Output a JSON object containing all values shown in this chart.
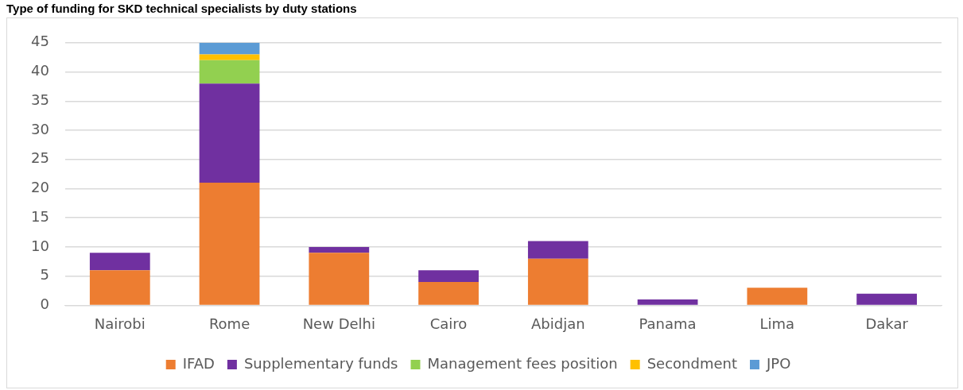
{
  "chart_data": {
    "type": "bar",
    "stacked": true,
    "title": "Type of funding for SKD technical specialists by duty stations",
    "categories": [
      "Nairobi",
      "Rome",
      "New Delhi",
      "Cairo",
      "Abidjan",
      "Panama",
      "Lima",
      "Dakar"
    ],
    "series": [
      {
        "name": "IFAD",
        "color": "#ed7d31",
        "values": [
          6,
          21,
          9,
          4,
          8,
          0,
          3,
          0
        ]
      },
      {
        "name": "Supplementary funds",
        "color": "#7030a0",
        "values": [
          3,
          17,
          1,
          2,
          3,
          1,
          0,
          2
        ]
      },
      {
        "name": "Management fees position",
        "color": "#92d050",
        "values": [
          0,
          4,
          0,
          0,
          0,
          0,
          0,
          0
        ]
      },
      {
        "name": "Secondment",
        "color": "#ffc000",
        "values": [
          0,
          1,
          0,
          0,
          0,
          0,
          0,
          0
        ]
      },
      {
        "name": "JPO",
        "color": "#5b9bd5",
        "values": [
          0,
          2,
          0,
          0,
          0,
          0,
          0,
          0
        ]
      }
    ],
    "ylim": [
      0,
      45
    ],
    "yticks": [
      0,
      5,
      10,
      15,
      20,
      25,
      30,
      35,
      40,
      45
    ],
    "grid": "y",
    "legend": "bottom"
  }
}
